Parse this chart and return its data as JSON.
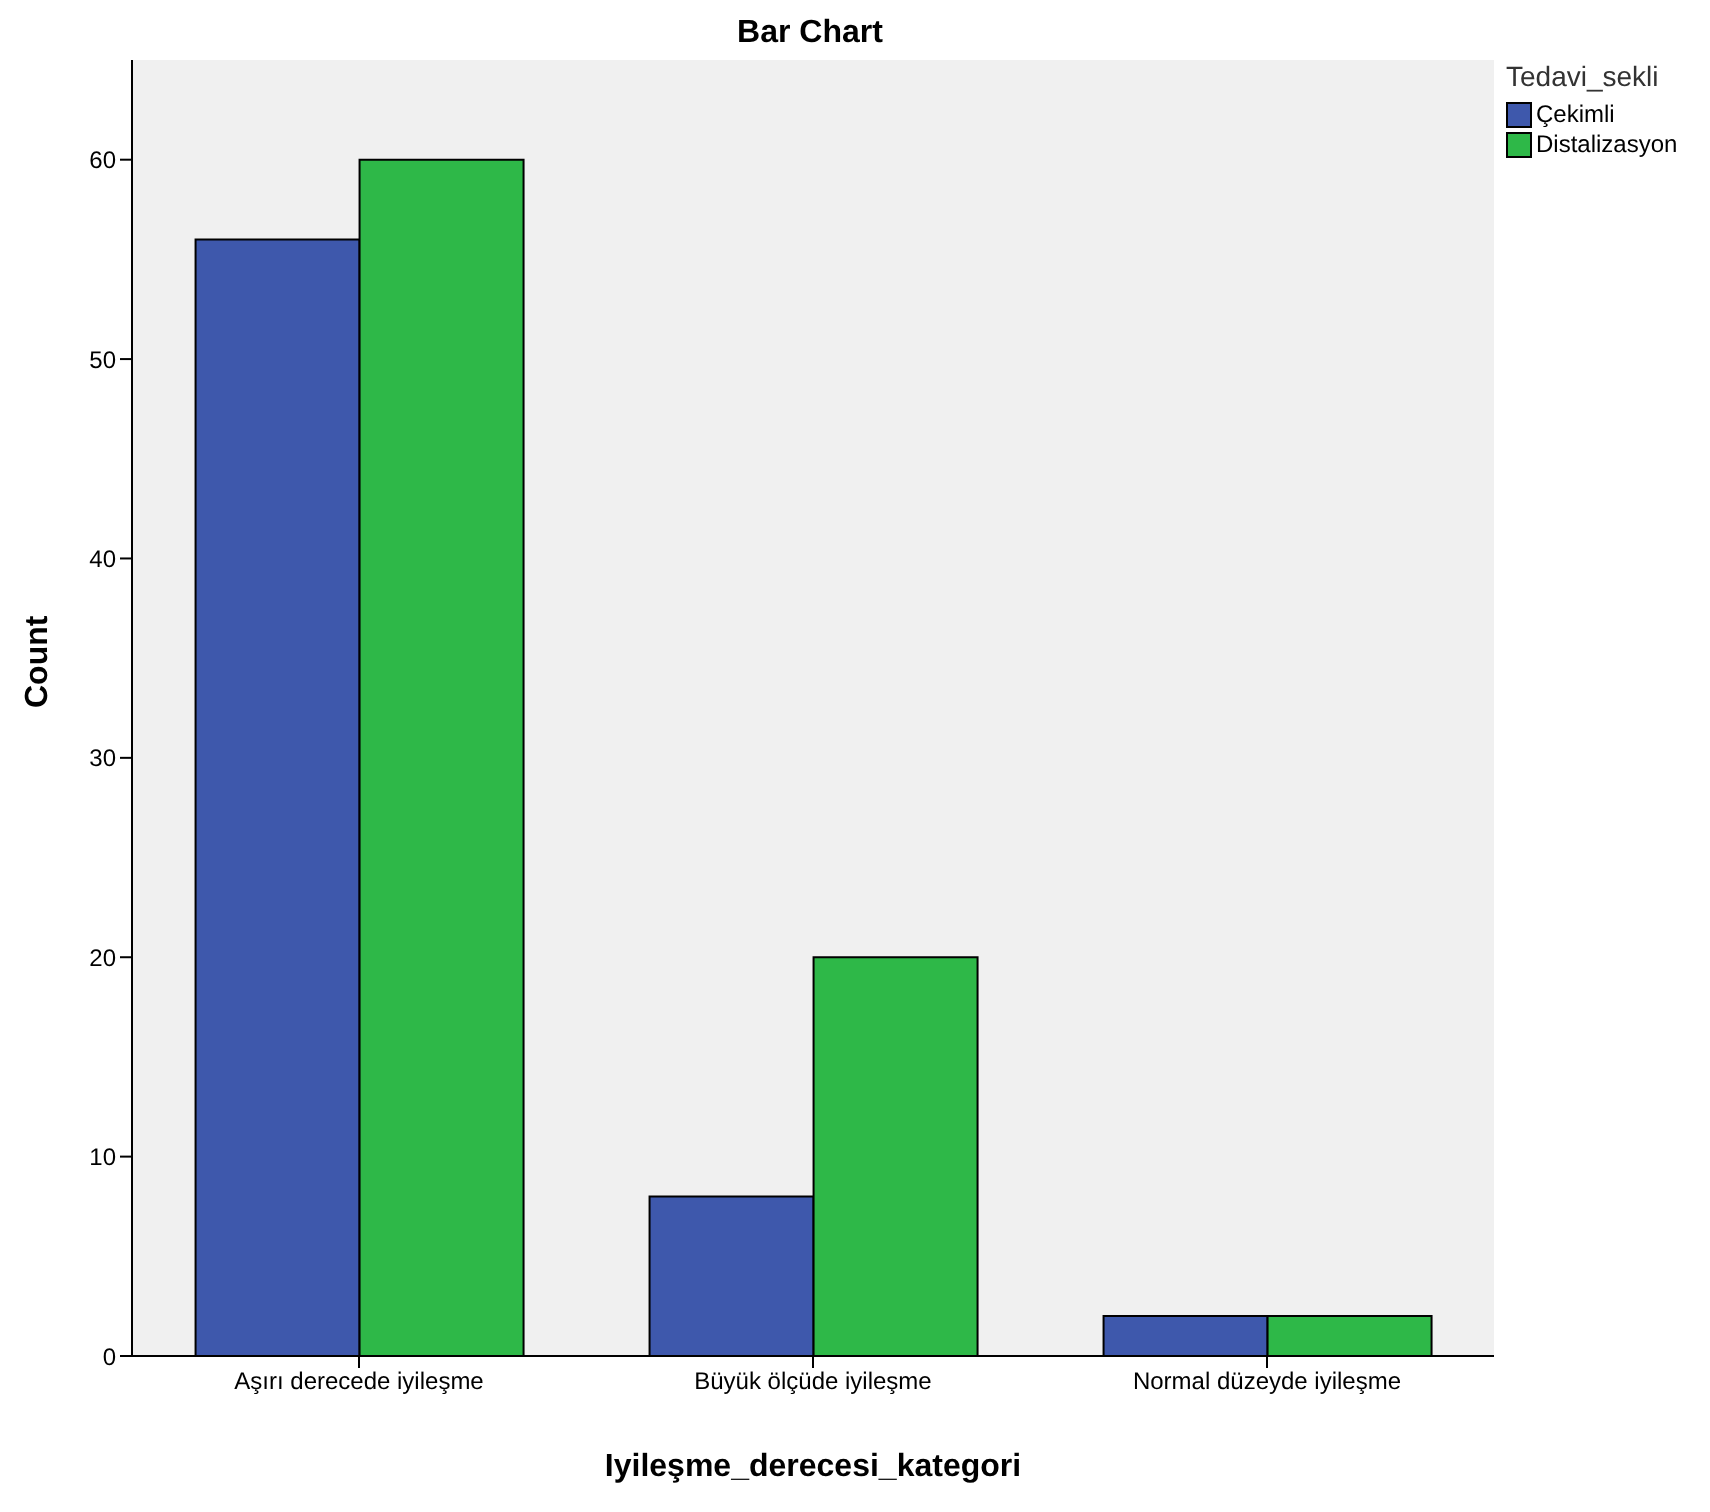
{
  "chart_data": {
    "type": "bar",
    "title": "Bar Chart",
    "xlabel": "Iyileşme_derecesi_kategori",
    "ylabel": "Count",
    "legend_title": "Tedavi_sekli",
    "categories": [
      "Aşırı derecede iyileşme",
      "Büyük ölçüde iyileşme",
      "Normal düzeyde iyileşme"
    ],
    "series": [
      {
        "name": "Çekimli",
        "color": "#3e58ac",
        "values": [
          56,
          8,
          2
        ]
      },
      {
        "name": "Distalizasyon",
        "color": "#2eb848",
        "values": [
          60,
          20,
          2
        ]
      }
    ],
    "ylim": [
      0,
      65
    ],
    "yticks": [
      0,
      10,
      20,
      30,
      40,
      50,
      60
    ],
    "grid": false,
    "legend": "top right"
  }
}
